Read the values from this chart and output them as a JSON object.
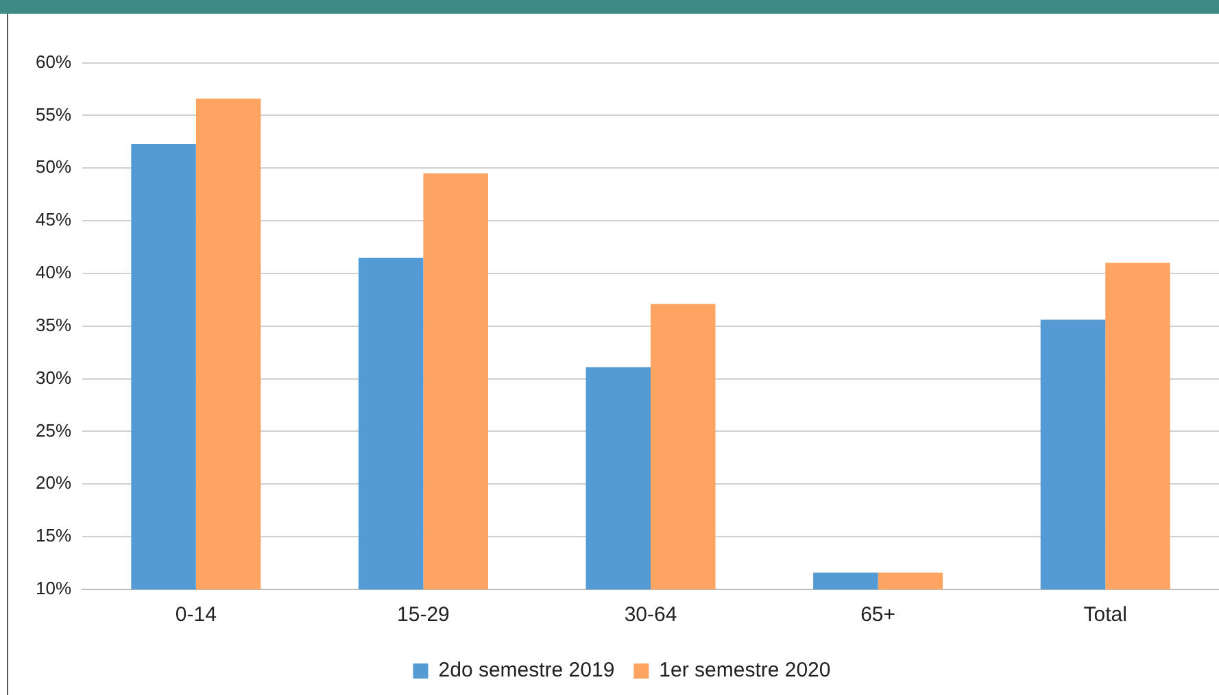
{
  "chart_data": {
    "type": "bar",
    "categories": [
      "0-14",
      "15-29",
      "30-64",
      "65+",
      "Total"
    ],
    "series": [
      {
        "name": "2do semestre 2019",
        "color": "#559bd3",
        "values": [
          52.3,
          41.5,
          31.1,
          11.6,
          35.6
        ]
      },
      {
        "name": "1er semestre 2020",
        "color": "#fda462",
        "values": [
          56.6,
          49.5,
          37.1,
          11.6,
          41
        ]
      }
    ],
    "ylim": [
      10,
      60
    ],
    "yticks": [
      {
        "value": 10,
        "label": "10%"
      },
      {
        "value": 15,
        "label": "15%"
      },
      {
        "value": 20,
        "label": "20%"
      },
      {
        "value": 25,
        "label": "25%"
      },
      {
        "value": 30,
        "label": "30%"
      },
      {
        "value": 35,
        "label": "35%"
      },
      {
        "value": 40,
        "label": "40%"
      },
      {
        "value": 45,
        "label": "45%"
      },
      {
        "value": 50,
        "label": "50%"
      },
      {
        "value": 55,
        "label": "55%"
      },
      {
        "value": 60,
        "label": "60%"
      }
    ],
    "grid": "y",
    "legend": "bottom"
  }
}
